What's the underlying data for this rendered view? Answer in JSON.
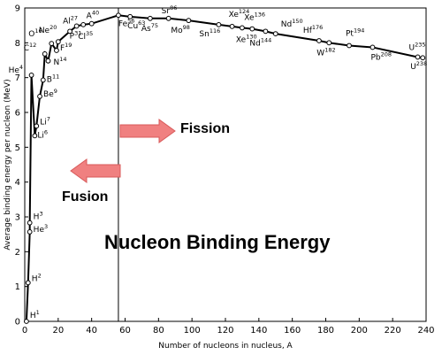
{
  "chart_data": {
    "type": "line",
    "title": "",
    "xlabel": "Number of nucleons in nucleus, A",
    "ylabel": "Average binding energy per nucleon (MeV)",
    "xlim": [
      0,
      240
    ],
    "ylim": [
      0,
      9
    ],
    "x_ticks": [
      "0",
      "20",
      "40",
      "60",
      "80",
      "100",
      "120",
      "140",
      "160",
      "180",
      "200",
      "220",
      "240"
    ],
    "y_ticks": [
      "0",
      "1",
      "2",
      "3",
      "4",
      "5",
      "6",
      "7",
      "8",
      "9"
    ],
    "grid": false,
    "divider_x": 56,
    "series": [
      {
        "points": [
          {
            "x": 1,
            "y": 0
          },
          {
            "x": 2,
            "y": 1.11
          },
          {
            "x": 3,
            "y": 2.57
          },
          {
            "x": 3,
            "y": 2.83
          },
          {
            "x": 4,
            "y": 7.07
          },
          {
            "x": 6,
            "y": 5.33
          },
          {
            "x": 7,
            "y": 5.61
          },
          {
            "x": 9,
            "y": 6.46
          },
          {
            "x": 11,
            "y": 6.93
          },
          {
            "x": 12,
            "y": 7.68
          },
          {
            "x": 14,
            "y": 7.48
          },
          {
            "x": 16,
            "y": 7.98
          },
          {
            "x": 19,
            "y": 7.78
          },
          {
            "x": 20,
            "y": 8.03
          },
          {
            "x": 27,
            "y": 8.33
          },
          {
            "x": 31,
            "y": 8.48
          },
          {
            "x": 35,
            "y": 8.52
          },
          {
            "x": 40,
            "y": 8.55
          },
          {
            "x": 56,
            "y": 8.79
          },
          {
            "x": 63,
            "y": 8.75
          },
          {
            "x": 75,
            "y": 8.7
          },
          {
            "x": 86,
            "y": 8.7
          },
          {
            "x": 98,
            "y": 8.64
          },
          {
            "x": 116,
            "y": 8.52
          },
          {
            "x": 124,
            "y": 8.47
          },
          {
            "x": 130,
            "y": 8.43
          },
          {
            "x": 136,
            "y": 8.4
          },
          {
            "x": 144,
            "y": 8.33
          },
          {
            "x": 150,
            "y": 8.26
          },
          {
            "x": 176,
            "y": 8.06
          },
          {
            "x": 182,
            "y": 8.0
          },
          {
            "x": 194,
            "y": 7.92
          },
          {
            "x": 208,
            "y": 7.87
          },
          {
            "x": 235,
            "y": 7.59
          },
          {
            "x": 238,
            "y": 7.57
          }
        ]
      }
    ],
    "annotations": [
      {
        "base": "H",
        "sup": "1",
        "x": 1,
        "y": 0
      },
      {
        "base": "H",
        "sup": "2",
        "x": 2,
        "y": 1.11
      },
      {
        "base": "He",
        "sup": "3",
        "x": 3,
        "y": 2.57
      },
      {
        "base": "H",
        "sup": "3",
        "x": 3,
        "y": 2.83
      },
      {
        "base": "He",
        "sup": "4",
        "x": 4,
        "y": 7.07
      },
      {
        "base": "Li",
        "sup": "6",
        "x": 6,
        "y": 5.33
      },
      {
        "base": "Li",
        "sup": "7",
        "x": 7,
        "y": 5.61
      },
      {
        "base": "Be",
        "sup": "9",
        "x": 9,
        "y": 6.46
      },
      {
        "base": "B",
        "sup": "11",
        "x": 11,
        "y": 6.93
      },
      {
        "base": "C",
        "sup": "12",
        "x": 12,
        "y": 7.68
      },
      {
        "base": "N",
        "sup": "14",
        "x": 14,
        "y": 7.48
      },
      {
        "base": "O",
        "sup": "16",
        "x": 16,
        "y": 7.98
      },
      {
        "base": "F",
        "sup": "19",
        "x": 19,
        "y": 7.78
      },
      {
        "base": "Ne",
        "sup": "20",
        "x": 20,
        "y": 8.03
      },
      {
        "base": "Al",
        "sup": "27",
        "x": 27,
        "y": 8.33
      },
      {
        "base": "P",
        "sup": "31",
        "x": 31,
        "y": 8.48
      },
      {
        "base": "Cl",
        "sup": "35",
        "x": 35,
        "y": 8.52
      },
      {
        "base": "A",
        "sup": "40",
        "x": 40,
        "y": 8.55
      },
      {
        "base": "Fe",
        "sup": "56",
        "x": 56,
        "y": 8.79
      },
      {
        "base": "Cu",
        "sup": "63",
        "x": 63,
        "y": 8.75
      },
      {
        "base": "As",
        "sup": "75",
        "x": 75,
        "y": 8.7
      },
      {
        "base": "Sr",
        "sup": "86",
        "x": 86,
        "y": 8.7
      },
      {
        "base": "Mo",
        "sup": "98",
        "x": 98,
        "y": 8.64
      },
      {
        "base": "Sn",
        "sup": "116",
        "x": 116,
        "y": 8.52
      },
      {
        "base": "Xe",
        "sup": "124",
        "x": 124,
        "y": 8.47
      },
      {
        "base": "Xe",
        "sup": "130",
        "x": 130,
        "y": 8.43
      },
      {
        "base": "Xe",
        "sup": "136",
        "x": 136,
        "y": 8.4
      },
      {
        "base": "Nd",
        "sup": "144",
        "x": 144,
        "y": 8.33
      },
      {
        "base": "Nd",
        "sup": "150",
        "x": 150,
        "y": 8.26
      },
      {
        "base": "Hf",
        "sup": "176",
        "x": 176,
        "y": 8.06
      },
      {
        "base": "W",
        "sup": "182",
        "x": 182,
        "y": 8.0
      },
      {
        "base": "Pt",
        "sup": "194",
        "x": 194,
        "y": 7.92
      },
      {
        "base": "Pb",
        "sup": "208",
        "x": 208,
        "y": 7.87
      },
      {
        "base": "U",
        "sup": "235",
        "x": 235,
        "y": 7.59
      },
      {
        "base": "U",
        "sup": "238",
        "x": 238,
        "y": 7.57
      }
    ]
  },
  "overlay": {
    "fission": "Fission",
    "fusion": "Fusion",
    "title": "Nucleon Binding Energy"
  },
  "colors": {
    "arrow_fill": "#f08080",
    "arrow_stroke": "#d85a5a",
    "line": "#000000"
  }
}
